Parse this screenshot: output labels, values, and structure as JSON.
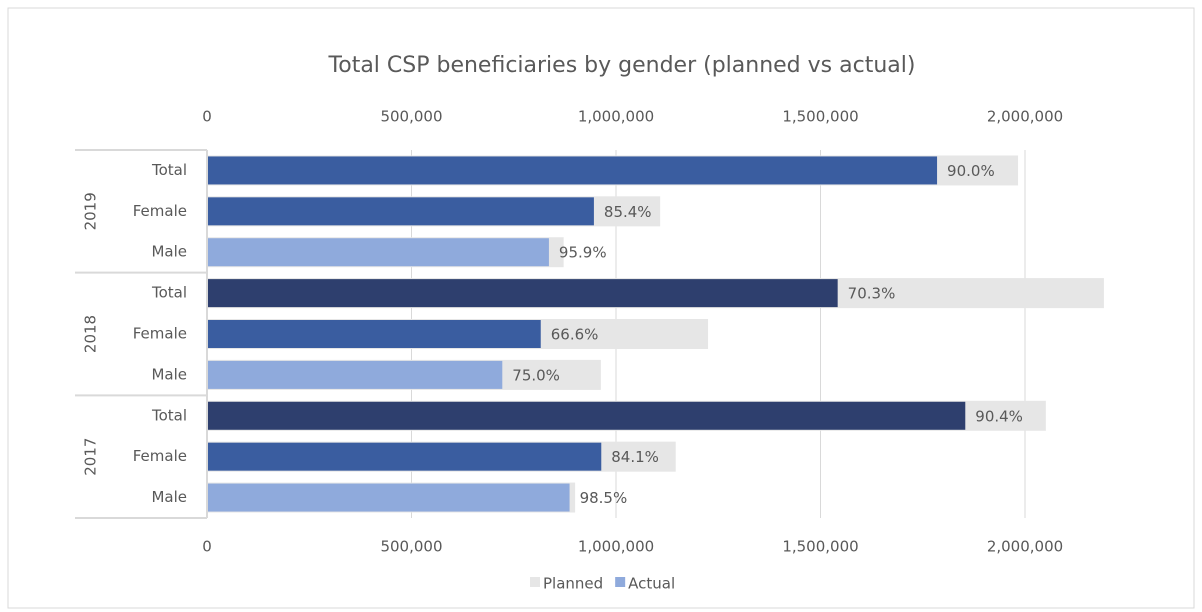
{
  "chart_data": {
    "type": "bar",
    "orientation": "horizontal",
    "title": "Total CSP beneficiaries by gender (planned vs actual)",
    "groups": [
      {
        "label": "2019",
        "categories": [
          "Total",
          "Female",
          "Male"
        ]
      },
      {
        "label": "2018",
        "categories": [
          "Total",
          "Female",
          "Male"
        ]
      },
      {
        "label": "2017",
        "categories": [
          "Total",
          "Female",
          "Male"
        ]
      }
    ],
    "series": [
      {
        "name": "Planned",
        "color": "#e6e6e6",
        "values": [
          1983000,
          1108000,
          872000,
          2193000,
          1225000,
          963000,
          2051000,
          1146000,
          900000
        ]
      },
      {
        "name": "Actual",
        "color": "#8faadc",
        "colors": [
          "#3a5da0",
          "#3a5da0",
          "#8faadc",
          "#2e3f6e",
          "#3a5da0",
          "#8faadc",
          "#2e3f6e",
          "#3a5da0",
          "#8faadc"
        ],
        "values": [
          1785000,
          946000,
          836000,
          1542000,
          816000,
          722000,
          1854000,
          964000,
          886500
        ],
        "value_labels": [
          "90.0%",
          "85.4%",
          "95.9%",
          "70.3%",
          "66.6%",
          "75.0%",
          "90.4%",
          "84.1%",
          "98.5%"
        ]
      }
    ],
    "xlim": [
      0,
      2450000
    ],
    "xticks": [
      0,
      {
        "value": 500000,
        "label": "500,000"
      },
      {
        "value": 1000000,
        "label": "1,000,000"
      },
      {
        "value": 1500000,
        "label": "1,500,000"
      },
      {
        "value": 2000000,
        "label": "2,000,000"
      }
    ],
    "grid": true,
    "legend": "bottom"
  }
}
